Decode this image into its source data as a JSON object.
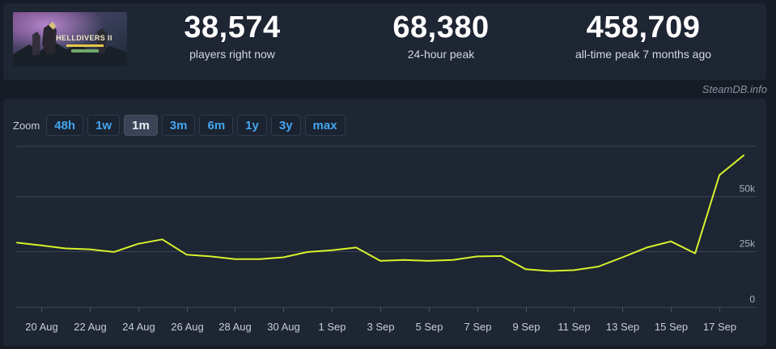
{
  "stats": {
    "current": {
      "value": "38,574",
      "label": "players right now"
    },
    "peak_24h": {
      "value": "68,380",
      "label": "24-hour peak"
    },
    "all_time": {
      "value": "458,709",
      "label": "all-time peak 7 months ago"
    }
  },
  "banner": {
    "title_text": "HELLDIVERS II"
  },
  "attribution": "SteamDB.info",
  "zoom": {
    "label": "Zoom",
    "options": [
      "48h",
      "1w",
      "1m",
      "3m",
      "6m",
      "1y",
      "3y",
      "max"
    ],
    "active": "1m"
  },
  "colors": {
    "line": "#d7f22d",
    "grid": "#3a4352",
    "panel": "#1e2533",
    "accent": "#43a6ee"
  },
  "chart_data": {
    "type": "line",
    "title": "",
    "xlabel": "",
    "ylabel": "",
    "ylim": [
      0,
      72500
    ],
    "yticks": [
      {
        "value": 0,
        "label": "0"
      },
      {
        "value": 25000,
        "label": "25k"
      },
      {
        "value": 50000,
        "label": "50k"
      }
    ],
    "xlim": [
      "2024-08-19",
      "2024-09-19"
    ],
    "xticks": [
      {
        "date": "2024-08-20",
        "label": "20 Aug"
      },
      {
        "date": "2024-08-22",
        "label": "22 Aug"
      },
      {
        "date": "2024-08-24",
        "label": "24 Aug"
      },
      {
        "date": "2024-08-26",
        "label": "26 Aug"
      },
      {
        "date": "2024-08-28",
        "label": "28 Aug"
      },
      {
        "date": "2024-08-30",
        "label": "30 Aug"
      },
      {
        "date": "2024-09-01",
        "label": "1 Sep"
      },
      {
        "date": "2024-09-03",
        "label": "3 Sep"
      },
      {
        "date": "2024-09-05",
        "label": "5 Sep"
      },
      {
        "date": "2024-09-07",
        "label": "7 Sep"
      },
      {
        "date": "2024-09-09",
        "label": "9 Sep"
      },
      {
        "date": "2024-09-11",
        "label": "11 Sep"
      },
      {
        "date": "2024-09-13",
        "label": "13 Sep"
      },
      {
        "date": "2024-09-15",
        "label": "15 Sep"
      },
      {
        "date": "2024-09-17",
        "label": "17 Sep"
      }
    ],
    "grid": true,
    "series": [
      {
        "points": [
          {
            "date": "2024-08-19",
            "value": 29000
          },
          {
            "date": "2024-08-20",
            "value": 27800
          },
          {
            "date": "2024-08-21",
            "value": 26400
          },
          {
            "date": "2024-08-22",
            "value": 26000
          },
          {
            "date": "2024-08-23",
            "value": 24800
          },
          {
            "date": "2024-08-24",
            "value": 28500
          },
          {
            "date": "2024-08-25",
            "value": 30500
          },
          {
            "date": "2024-08-26",
            "value": 23600
          },
          {
            "date": "2024-08-27",
            "value": 22800
          },
          {
            "date": "2024-08-28",
            "value": 21600
          },
          {
            "date": "2024-08-29",
            "value": 21600
          },
          {
            "date": "2024-08-30",
            "value": 22400
          },
          {
            "date": "2024-08-31",
            "value": 24800
          },
          {
            "date": "2024-09-01",
            "value": 25600
          },
          {
            "date": "2024-09-02",
            "value": 26800
          },
          {
            "date": "2024-09-03",
            "value": 20800
          },
          {
            "date": "2024-09-04",
            "value": 21200
          },
          {
            "date": "2024-09-05",
            "value": 20800
          },
          {
            "date": "2024-09-06",
            "value": 21200
          },
          {
            "date": "2024-09-07",
            "value": 22800
          },
          {
            "date": "2024-09-08",
            "value": 23000
          },
          {
            "date": "2024-09-09",
            "value": 17000
          },
          {
            "date": "2024-09-10",
            "value": 16200
          },
          {
            "date": "2024-09-11",
            "value": 16600
          },
          {
            "date": "2024-09-12",
            "value": 18200
          },
          {
            "date": "2024-09-13",
            "value": 22400
          },
          {
            "date": "2024-09-14",
            "value": 26800
          },
          {
            "date": "2024-09-15",
            "value": 29600
          },
          {
            "date": "2024-09-16",
            "value": 24200
          },
          {
            "date": "2024-09-17",
            "value": 59500
          },
          {
            "date": "2024-09-18",
            "value": 68380
          }
        ]
      }
    ]
  }
}
